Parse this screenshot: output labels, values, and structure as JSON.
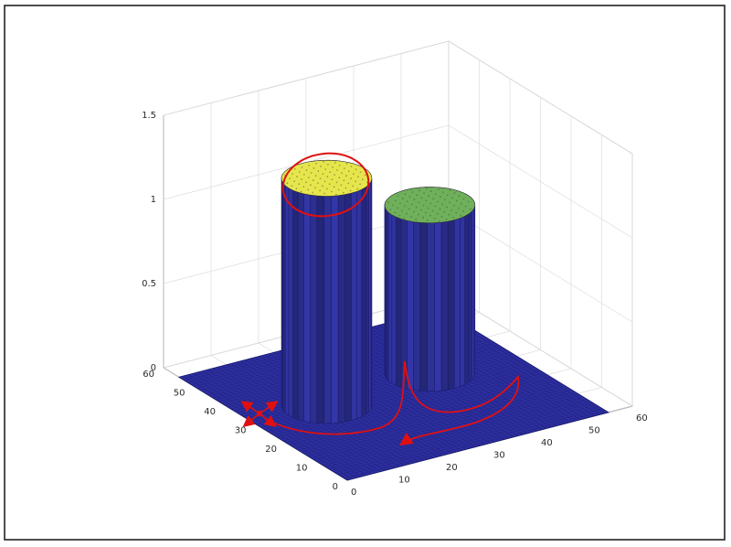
{
  "chart_data": {
    "type": "surface",
    "title": "",
    "xlabel": "",
    "ylabel": "",
    "zlabel": "",
    "xlim": [
      0,
      60
    ],
    "ylim": [
      0,
      60
    ],
    "zlim": [
      0,
      1.5
    ],
    "grid": true,
    "x_ticks": [
      "0",
      "10",
      "20",
      "30",
      "40",
      "50",
      "60"
    ],
    "y_ticks": [
      "0",
      "10",
      "20",
      "30",
      "40",
      "50",
      "60"
    ],
    "z_ticks": [
      "0",
      "0.5",
      "1",
      "1.5"
    ],
    "surface_domain": {
      "x": [
        0,
        55
      ],
      "y": [
        0,
        55
      ]
    },
    "base_level": 0,
    "cylinders": [
      {
        "center_x": 15,
        "center_y": 30,
        "radius": 8,
        "height": 1.35,
        "top_color": "#e6e64c"
      },
      {
        "center_x": 38,
        "center_y": 32,
        "radius": 8,
        "height": 1.0,
        "top_color": "#6fb05a"
      }
    ],
    "colors": {
      "surface_base": "#2d2fa0",
      "cylinder_side": "#3336a8",
      "annotation": "#e01010",
      "frame": "#222222",
      "grid": "#dddddd"
    },
    "annotations": [
      "red ellipse circling the top of the taller peak",
      "red 4-way arrow cross at the start point on the base plane",
      "red path curving from the start point past the taller peak, behind the second peak, ending in an arrowhead"
    ]
  }
}
